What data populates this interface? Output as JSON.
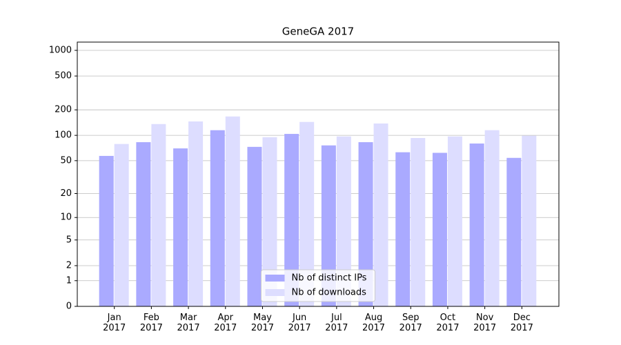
{
  "chart_data": {
    "type": "bar",
    "title": "GeneGA 2017",
    "categories": [
      "Jan\n2017",
      "Feb\n2017",
      "Mar\n2017",
      "Apr\n2017",
      "May\n2017",
      "Jun\n2017",
      "Jul\n2017",
      "Aug\n2017",
      "Sep\n2017",
      "Oct\n2017",
      "Nov\n2017",
      "Dec\n2017"
    ],
    "series": [
      {
        "name": "Nb of distinct IPs",
        "color": "#aaaaff",
        "values": [
          57,
          83,
          70,
          115,
          73,
          104,
          76,
          83,
          63,
          62,
          80,
          54
        ]
      },
      {
        "name": "Nb of downloads",
        "color": "#ddddff",
        "values": [
          79,
          136,
          146,
          167,
          95,
          144,
          97,
          138,
          93,
          97,
          115,
          99
        ]
      }
    ],
    "yscale": "log1p",
    "ylim": [
      0,
      1250
    ],
    "yticks": [
      0,
      1,
      2,
      5,
      10,
      20,
      50,
      100,
      200,
      500,
      1000
    ],
    "grid": true,
    "legend": "lower center"
  }
}
